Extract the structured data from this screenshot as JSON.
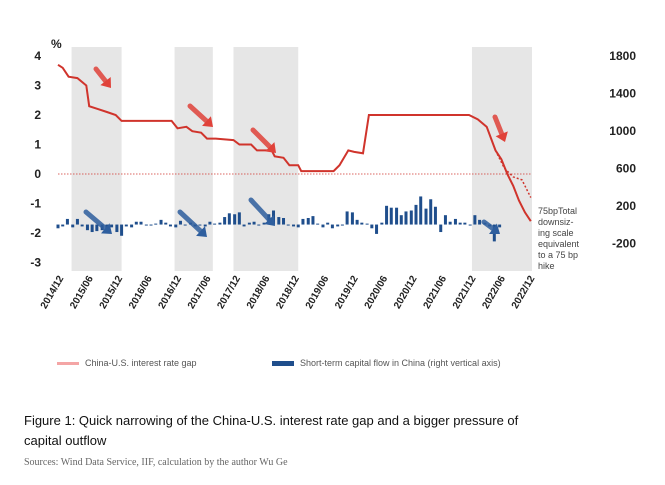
{
  "figure": {
    "caption": "Figure 1: Quick narrowing of the China-U.S. interest rate gap and a bigger pressure of capital outflow",
    "source": "Sources: Wind Data Service, IIF, calculation by the author Wu Ge"
  },
  "chart_data": {
    "type": "bar+line",
    "title": "",
    "left_axis": {
      "unit_label": "%",
      "ticks": [
        "4",
        "3",
        "2",
        "1",
        "0",
        "-1",
        "-2",
        "-3"
      ],
      "range": [
        -3,
        4
      ]
    },
    "right_axis": {
      "ticks": [
        "1800",
        "1400",
        "1000",
        "600",
        "200",
        "-200"
      ],
      "range": [
        -400,
        1800
      ]
    },
    "x_labels": [
      "2014/12",
      "2015/06",
      "2015/12",
      "2016/06",
      "2016/12",
      "2017/06",
      "2017/12",
      "2018/06",
      "2018/12",
      "2019/06",
      "2019/12",
      "2020/06",
      "2020/12",
      "2021/06",
      "2021/12",
      "2022/06",
      "2022/12"
    ],
    "legend": [
      {
        "name": "China-U.S. interest rate gap",
        "color": "#f4a5a5"
      },
      {
        "name": "Short-term capital flow in China (right vertical axis)",
        "color": "#1f4e8c"
      }
    ],
    "annotation": "75bpTotal downsizing scale equivalent to a 75 bp hike",
    "colors": {
      "gap_line": "#d0342c",
      "flow_bar": "#1f4e8c",
      "shade": "#e6e6e6",
      "arrow_red": "#e0423a",
      "arrow_blue": "#2e5e9e"
    },
    "gap_series": [
      [
        2014.92,
        3.7
      ],
      [
        2015.0,
        3.6
      ],
      [
        2015.1,
        3.3
      ],
      [
        2015.25,
        3.25
      ],
      [
        2015.4,
        3.0
      ],
      [
        2015.45,
        2.3
      ],
      [
        2015.6,
        2.2
      ],
      [
        2015.75,
        2.1
      ],
      [
        2015.9,
        2.0
      ],
      [
        2016.0,
        1.8
      ],
      [
        2016.5,
        1.8
      ],
      [
        2016.85,
        1.8
      ],
      [
        2016.95,
        1.55
      ],
      [
        2017.1,
        1.6
      ],
      [
        2017.2,
        1.45
      ],
      [
        2017.35,
        1.4
      ],
      [
        2017.45,
        1.2
      ],
      [
        2017.6,
        1.2
      ],
      [
        2017.9,
        1.15
      ],
      [
        2018.0,
        1.0
      ],
      [
        2018.2,
        1.0
      ],
      [
        2018.3,
        0.8
      ],
      [
        2018.55,
        0.8
      ],
      [
        2018.6,
        0.6
      ],
      [
        2018.75,
        0.55
      ],
      [
        2018.85,
        0.3
      ],
      [
        2019.0,
        0.3
      ],
      [
        2019.05,
        0.1
      ],
      [
        2019.6,
        0.1
      ],
      [
        2019.7,
        0.3
      ],
      [
        2019.85,
        0.8
      ],
      [
        2019.95,
        0.75
      ],
      [
        2020.1,
        0.7
      ],
      [
        2020.2,
        2.0
      ],
      [
        2021.9,
        2.0
      ],
      [
        2022.05,
        1.85
      ],
      [
        2022.2,
        1.6
      ],
      [
        2022.35,
        0.8
      ],
      [
        2022.45,
        0.5
      ],
      [
        2022.55,
        0.0
      ],
      [
        2022.65,
        -0.4
      ],
      [
        2022.75,
        -0.9
      ],
      [
        2022.85,
        -1.3
      ],
      [
        2022.95,
        -1.6
      ]
    ],
    "gap_forecast": [
      [
        2022.35,
        0.8
      ],
      [
        2022.5,
        0.2
      ],
      [
        2022.65,
        -0.1
      ],
      [
        2022.8,
        -0.2
      ],
      [
        2022.95,
        -0.8
      ]
    ],
    "flow_series": [
      [
        2014.92,
        -40
      ],
      [
        2015.0,
        -20
      ],
      [
        2015.08,
        60
      ],
      [
        2015.17,
        -30
      ],
      [
        2015.25,
        60
      ],
      [
        2015.33,
        -20
      ],
      [
        2015.42,
        -60
      ],
      [
        2015.5,
        -80
      ],
      [
        2015.58,
        -70
      ],
      [
        2015.67,
        -60
      ],
      [
        2015.75,
        -60
      ],
      [
        2015.83,
        -30
      ],
      [
        2015.92,
        -80
      ],
      [
        2016.0,
        -120
      ],
      [
        2016.08,
        -20
      ],
      [
        2016.17,
        -30
      ],
      [
        2016.25,
        30
      ],
      [
        2016.33,
        30
      ],
      [
        2016.42,
        0
      ],
      [
        2016.5,
        -10
      ],
      [
        2016.58,
        10
      ],
      [
        2016.67,
        50
      ],
      [
        2016.75,
        20
      ],
      [
        2016.83,
        -20
      ],
      [
        2016.92,
        -30
      ],
      [
        2017.0,
        40
      ],
      [
        2017.08,
        0
      ],
      [
        2017.17,
        20
      ],
      [
        2017.25,
        -20
      ],
      [
        2017.33,
        -10
      ],
      [
        2017.42,
        -20
      ],
      [
        2017.5,
        30
      ],
      [
        2017.58,
        10
      ],
      [
        2017.67,
        20
      ],
      [
        2017.75,
        80
      ],
      [
        2017.83,
        120
      ],
      [
        2017.92,
        110
      ],
      [
        2018.0,
        130
      ],
      [
        2018.08,
        -20
      ],
      [
        2018.17,
        20
      ],
      [
        2018.25,
        30
      ],
      [
        2018.33,
        -10
      ],
      [
        2018.42,
        20
      ],
      [
        2018.5,
        110
      ],
      [
        2018.58,
        150
      ],
      [
        2018.67,
        80
      ],
      [
        2018.75,
        70
      ],
      [
        2018.83,
        0
      ],
      [
        2018.92,
        -20
      ],
      [
        2019.0,
        -30
      ],
      [
        2019.08,
        60
      ],
      [
        2019.17,
        70
      ],
      [
        2019.25,
        90
      ],
      [
        2019.33,
        10
      ],
      [
        2019.42,
        -30
      ],
      [
        2019.5,
        20
      ],
      [
        2019.58,
        -40
      ],
      [
        2019.67,
        -20
      ],
      [
        2019.75,
        -10
      ],
      [
        2019.83,
        140
      ],
      [
        2019.92,
        130
      ],
      [
        2020.0,
        50
      ],
      [
        2020.08,
        20
      ],
      [
        2020.17,
        10
      ],
      [
        2020.25,
        -40
      ],
      [
        2020.33,
        -100
      ],
      [
        2020.42,
        20
      ],
      [
        2020.5,
        200
      ],
      [
        2020.58,
        180
      ],
      [
        2020.67,
        180
      ],
      [
        2020.75,
        100
      ],
      [
        2020.83,
        140
      ],
      [
        2020.92,
        150
      ],
      [
        2021.0,
        210
      ],
      [
        2021.08,
        300
      ],
      [
        2021.17,
        170
      ],
      [
        2021.25,
        270
      ],
      [
        2021.33,
        190
      ],
      [
        2021.42,
        -80
      ],
      [
        2021.5,
        100
      ],
      [
        2021.58,
        30
      ],
      [
        2021.67,
        60
      ],
      [
        2021.75,
        20
      ],
      [
        2021.83,
        20
      ],
      [
        2021.92,
        -10
      ],
      [
        2022.0,
        100
      ],
      [
        2022.08,
        50
      ],
      [
        2022.17,
        20
      ],
      [
        2022.25,
        -20
      ],
      [
        2022.33,
        -180
      ],
      [
        2022.42,
        -30
      ]
    ],
    "shaded_periods": [
      [
        2015.15,
        2016.0
      ],
      [
        2016.9,
        2017.55
      ],
      [
        2017.9,
        2019.0
      ],
      [
        2021.95,
        2022.97
      ]
    ]
  }
}
